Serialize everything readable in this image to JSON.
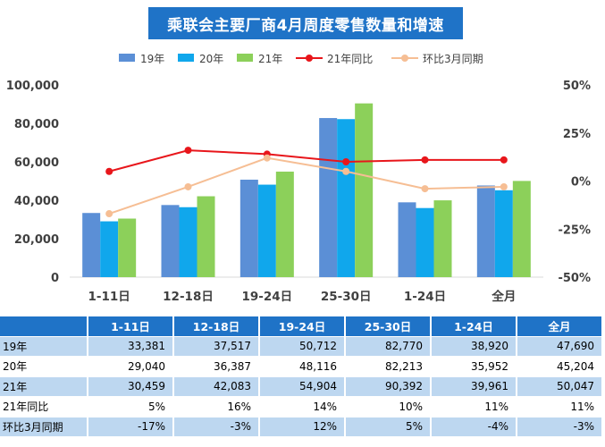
{
  "chart_data": {
    "type": "bar",
    "title": "乘联会主要厂商4月周度零售数量和增速",
    "categories": [
      "1-11日",
      "12-18日",
      "19-24日",
      "25-30日",
      "1-24日",
      "全月"
    ],
    "series": [
      {
        "name": "19年",
        "kind": "bar",
        "color": "#5b8fd6",
        "values": [
          33381,
          37517,
          50712,
          82770,
          38920,
          47690
        ]
      },
      {
        "name": "20年",
        "kind": "bar",
        "color": "#10a7ec",
        "values": [
          29040,
          36387,
          48116,
          82213,
          35952,
          45204
        ]
      },
      {
        "name": "21年",
        "kind": "bar",
        "color": "#8cd05a",
        "values": [
          30459,
          42083,
          54904,
          90392,
          39961,
          50047
        ]
      },
      {
        "name": "21年同比",
        "kind": "line",
        "axis": "right",
        "color": "#e8161b",
        "values": [
          5,
          16,
          14,
          10,
          11,
          11
        ]
      },
      {
        "name": "环比3月同期",
        "kind": "line",
        "axis": "right",
        "color": "#f6be94",
        "values": [
          -17,
          -3,
          12,
          5,
          -4,
          -3
        ]
      }
    ],
    "left_axis": {
      "min": 0,
      "max": 100000,
      "step": 20000,
      "ticks": [
        "0",
        "20,000",
        "40,000",
        "60,000",
        "80,000",
        "100,000"
      ]
    },
    "right_axis": {
      "min": -50,
      "max": 50,
      "step": 25,
      "unit": "%",
      "ticks": [
        "-50%",
        "-25%",
        "0%",
        "25%",
        "50%"
      ]
    },
    "legend_position": "top",
    "grid": false
  },
  "table": {
    "header": [
      "",
      "1-11日",
      "12-18日",
      "19-24日",
      "25-30日",
      "1-24日",
      "全月"
    ],
    "rows": [
      {
        "label": "19年",
        "cells": [
          "33,381",
          "37,517",
          "50,712",
          "82,770",
          "38,920",
          "47,690"
        ]
      },
      {
        "label": "20年",
        "cells": [
          "29,040",
          "36,387",
          "48,116",
          "82,213",
          "35,952",
          "45,204"
        ]
      },
      {
        "label": "21年",
        "cells": [
          "30,459",
          "42,083",
          "54,904",
          "90,392",
          "39,961",
          "50,047"
        ]
      },
      {
        "label": "21年同比",
        "cells": [
          "5%",
          "16%",
          "14%",
          "10%",
          "11%",
          "11%"
        ]
      },
      {
        "label": "环比3月同期",
        "cells": [
          "-17%",
          "-3%",
          "12%",
          "5%",
          "-4%",
          "-3%"
        ]
      }
    ]
  }
}
